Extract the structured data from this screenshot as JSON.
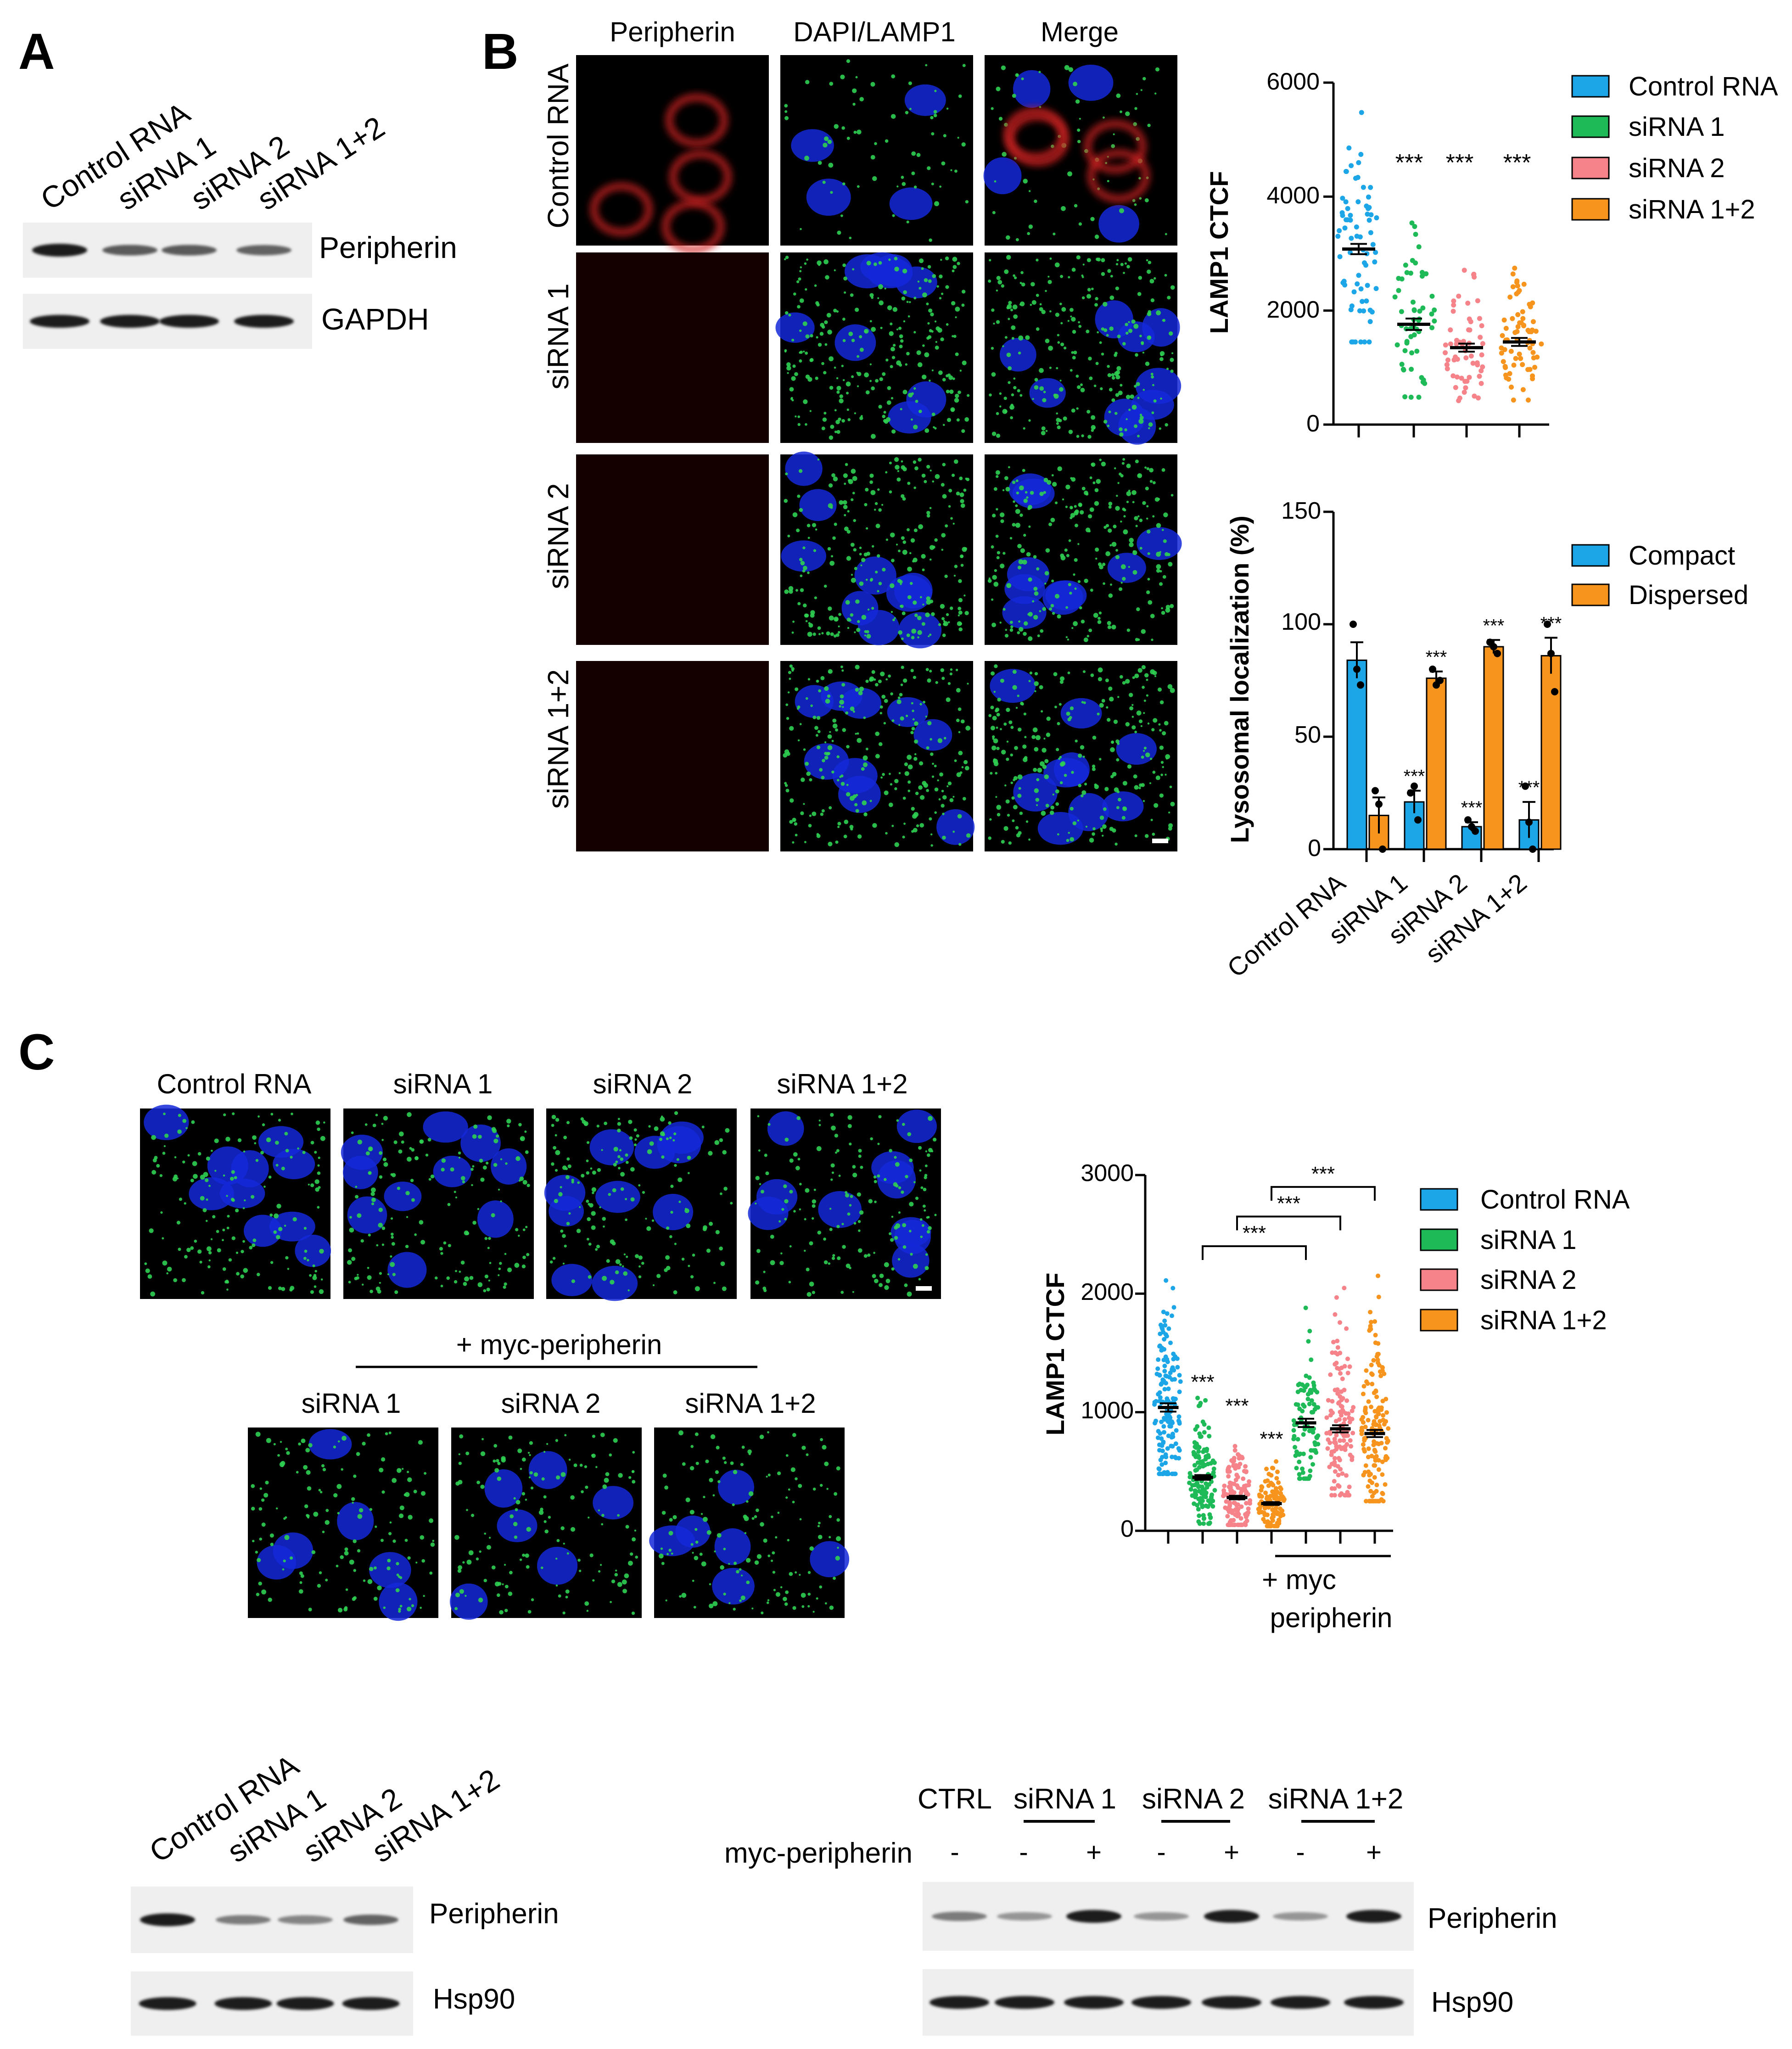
{
  "colors": {
    "control": "#1ca6e8",
    "sirna1": "#1fba58",
    "sirna2": "#f58389",
    "sirna12": "#f7941d",
    "compact": "#1ca6e8",
    "dispersed": "#f7941d",
    "red_channel": "#d22222",
    "green_channel": "#2fd052",
    "blue_channel": "#1428d8"
  },
  "panel_A": {
    "letter": "A",
    "lanes": [
      "Control RNA",
      "siRNA 1",
      "siRNA 2",
      "siRNA 1+2"
    ],
    "bands": [
      {
        "name": "Peripherin",
        "intensity": [
          1.0,
          0.65,
          0.65,
          0.6
        ]
      },
      {
        "name": "GAPDH",
        "intensity": [
          1.0,
          1.0,
          1.0,
          1.0
        ]
      }
    ]
  },
  "panel_B": {
    "letter": "B",
    "columns": [
      "Peripherin",
      "DAPI/LAMP1",
      "Merge"
    ],
    "rows": [
      "Control RNA",
      "siRNA 1",
      "siRNA 2",
      "siRNA 1+2"
    ]
  },
  "panel_C": {
    "letter": "C",
    "top_row": [
      "Control RNA",
      "siRNA 1",
      "siRNA 2",
      "siRNA 1+2"
    ],
    "rescue_header": "+ myc-peripherin",
    "bottom_row": [
      "siRNA 1",
      "siRNA 2",
      "siRNA 1+2"
    ]
  },
  "chart_data": [
    {
      "type": "scatter",
      "ylabel": "LAMP1 CTCF",
      "ylim": [
        0,
        6000
      ],
      "yticks": [
        "0",
        "2000",
        "4000",
        "6000"
      ],
      "legend": [
        "Control RNA",
        "siRNA 1",
        "siRNA 2",
        "siRNA 1+2"
      ],
      "groups": [
        {
          "name": "Control RNA",
          "mean": 3080,
          "sem": 90,
          "min": 1450,
          "max": 5500,
          "n": 70,
          "sig": ""
        },
        {
          "name": "siRNA 1",
          "mean": 1760,
          "sem": 100,
          "min": 480,
          "max": 3620,
          "n": 55,
          "sig": "***"
        },
        {
          "name": "siRNA 2",
          "mean": 1350,
          "sem": 70,
          "min": 420,
          "max": 2880,
          "n": 60,
          "sig": "***"
        },
        {
          "name": "siRNA 1+2",
          "mean": 1450,
          "sem": 70,
          "min": 430,
          "max": 2850,
          "n": 70,
          "sig": "***"
        }
      ]
    },
    {
      "type": "bar",
      "ylabel": "Lysosomal localization (%)",
      "ylim": [
        0,
        150
      ],
      "yticks": [
        "0",
        "50",
        "100",
        "150"
      ],
      "categories": [
        "Control RNA",
        "siRNA 1",
        "siRNA 2",
        "siRNA 1+2"
      ],
      "series": [
        {
          "name": "Compact",
          "values": [
            84,
            21,
            10,
            13
          ],
          "errors": [
            8,
            5,
            2,
            8
          ],
          "points": [
            [
              100,
              80,
              73
            ],
            [
              25,
              28,
              13
            ],
            [
              13,
              10,
              8
            ],
            [
              28,
              12,
              0
            ]
          ],
          "sig": [
            "",
            "***",
            "***",
            "***"
          ]
        },
        {
          "name": "Dispersed",
          "values": [
            15,
            76,
            90,
            86
          ],
          "errors": [
            8,
            3,
            3,
            8
          ],
          "points": [
            [
              26,
              20,
              0
            ],
            [
              80,
              73,
              75
            ],
            [
              92,
              90,
              87
            ],
            [
              100,
              87,
              70
            ]
          ],
          "sig": [
            "",
            "***",
            "***",
            "***"
          ]
        }
      ]
    },
    {
      "type": "scatter",
      "ylabel": "LAMP1 CTCF",
      "ylim": [
        0,
        3000
      ],
      "yticks": [
        "0",
        "1000",
        "2000",
        "3000"
      ],
      "legend": [
        "Control RNA",
        "siRNA 1",
        "siRNA 2",
        "siRNA 1+2"
      ],
      "groups": [
        {
          "name": "Control RNA",
          "mean": 1040,
          "sem": 35,
          "min": 480,
          "max": 2480,
          "n": 160,
          "sig": ""
        },
        {
          "name": "siRNA 1",
          "mean": 450,
          "sem": 20,
          "min": 60,
          "max": 1120,
          "n": 130,
          "sig": "***"
        },
        {
          "name": "siRNA 2",
          "mean": 280,
          "sem": 15,
          "min": 50,
          "max": 920,
          "n": 130,
          "sig": "***"
        },
        {
          "name": "siRNA 1+2",
          "mean": 230,
          "sem": 12,
          "min": 40,
          "max": 640,
          "n": 120,
          "sig": "***"
        },
        {
          "name": "siRNA 1 + myc",
          "mean": 910,
          "sem": 35,
          "min": 440,
          "max": 1880,
          "n": 90,
          "sig": ""
        },
        {
          "name": "siRNA 2 + myc",
          "mean": 860,
          "sem": 30,
          "min": 300,
          "max": 2350,
          "n": 130,
          "sig": ""
        },
        {
          "name": "siRNA 1+2 + myc",
          "mean": 820,
          "sem": 30,
          "min": 250,
          "max": 2150,
          "n": 160,
          "sig": ""
        }
      ],
      "brackets": [
        {
          "from": 1,
          "to": 4,
          "y": 2400,
          "label": "***"
        },
        {
          "from": 2,
          "to": 5,
          "y": 2650,
          "label": "***"
        },
        {
          "from": 3,
          "to": 6,
          "y": 2900,
          "label": "***"
        }
      ],
      "rescue_label": [
        "+ myc",
        "peripherin"
      ]
    }
  ],
  "blot_C_left": {
    "lanes": [
      "Control RNA",
      "siRNA 1",
      "siRNA 2",
      "siRNA 1+2"
    ],
    "bands": [
      {
        "name": "Peripherin",
        "intensity": [
          1.0,
          0.45,
          0.4,
          0.6
        ]
      },
      {
        "name": "Hsp90",
        "intensity": [
          1.0,
          1.0,
          1.0,
          1.0
        ]
      }
    ]
  },
  "blot_C_right": {
    "groups": [
      "CTRL",
      "siRNA 1",
      "siRNA 2",
      "siRNA 1+2"
    ],
    "row_label": "myc-peripherin",
    "lane_marks": [
      "-",
      "-",
      "+",
      "-",
      "+",
      "-",
      "+"
    ],
    "bands": [
      {
        "name": "Peripherin",
        "intensity": [
          0.45,
          0.3,
          1.0,
          0.3,
          1.0,
          0.3,
          1.0
        ]
      },
      {
        "name": "Hsp90",
        "intensity": [
          1.0,
          1.0,
          1.0,
          1.0,
          1.0,
          1.0,
          1.0
        ]
      }
    ]
  }
}
